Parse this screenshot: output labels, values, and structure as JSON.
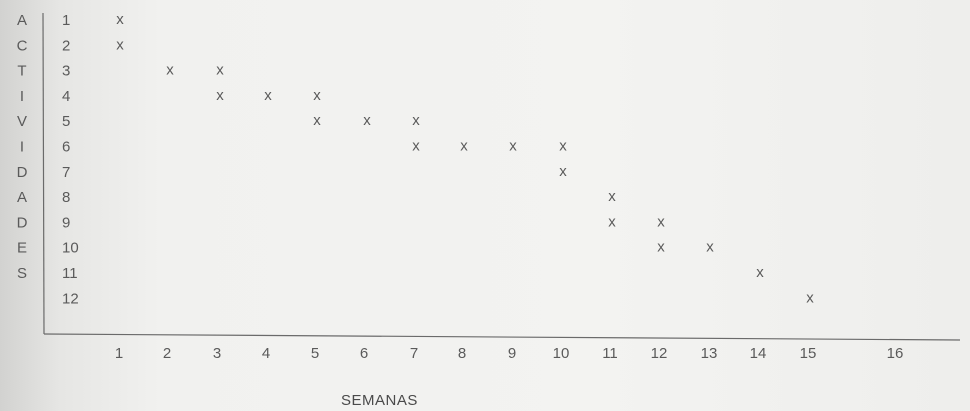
{
  "chart_data": {
    "type": "scatter",
    "title": "",
    "xlabel": "SEMANAS",
    "ylabel": "ACTIVIDADES",
    "x_ticks": [
      "1",
      "2",
      "3",
      "4",
      "5",
      "6",
      "7",
      "8",
      "9",
      "10",
      "11",
      "12",
      "13",
      "14",
      "15",
      "16"
    ],
    "y_ticks": [
      "1",
      "2",
      "3",
      "4",
      "5",
      "6",
      "7",
      "8",
      "9",
      "10",
      "11",
      "12"
    ],
    "marker": "x",
    "grid": false,
    "points": [
      {
        "x": 1,
        "y": 1
      },
      {
        "x": 1,
        "y": 2
      },
      {
        "x": 2,
        "y": 3
      },
      {
        "x": 3,
        "y": 3
      },
      {
        "x": 3,
        "y": 4
      },
      {
        "x": 4,
        "y": 4
      },
      {
        "x": 5,
        "y": 4
      },
      {
        "x": 5,
        "y": 5
      },
      {
        "x": 6,
        "y": 5
      },
      {
        "x": 7,
        "y": 5
      },
      {
        "x": 7,
        "y": 6
      },
      {
        "x": 8,
        "y": 6
      },
      {
        "x": 9,
        "y": 6
      },
      {
        "x": 10,
        "y": 6
      },
      {
        "x": 10,
        "y": 7
      },
      {
        "x": 11,
        "y": 8
      },
      {
        "x": 11,
        "y": 9
      },
      {
        "x": 12,
        "y": 9
      },
      {
        "x": 12,
        "y": 10
      },
      {
        "x": 13,
        "y": 10
      },
      {
        "x": 14,
        "y": 11
      },
      {
        "x": 15,
        "y": 12
      }
    ]
  }
}
